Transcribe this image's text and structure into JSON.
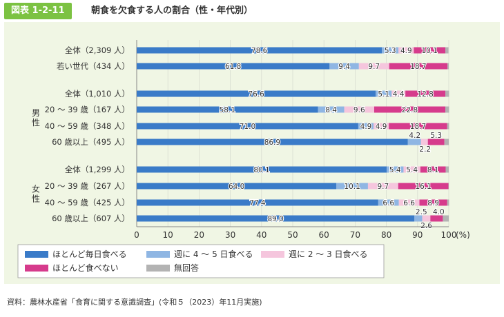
{
  "header": {
    "badge": "図表 1-2-11",
    "title": "朝食を欠食する人の割合（性・年代別）"
  },
  "source": "資料：農林水産省「食育に関する意識調査」(令和５（2023）年11月実施)",
  "colors": {
    "series": [
      "#3a7bc8",
      "#8fb6e3",
      "#f5c6dd",
      "#d63b8c",
      "#b3b3b3"
    ],
    "panel": "#f0f6e4",
    "badge": "#7cc242"
  },
  "chart_data": {
    "type": "bar",
    "orientation": "horizontal",
    "stacked": true,
    "title": "",
    "xlabel": "",
    "ylabel": "",
    "x_unit": "(%)",
    "xlim": [
      0,
      100
    ],
    "x_ticks": [
      0,
      10,
      20,
      30,
      40,
      50,
      60,
      70,
      80,
      90,
      100
    ],
    "grid": true,
    "legend_position": "bottom",
    "categories": [
      "全体（2,309 人）",
      "若い世代（434 人）",
      "全体（1,010 人）",
      "20 ～ 39 歳（167 人）",
      "40 ～ 59 歳（348 人）",
      "60 歳以上（495 人）",
      "全体（1,299 人）",
      "20 ～ 39 歳（267 人）",
      "40 ～ 59 歳（425 人）",
      "60 歳以上（607 人）"
    ],
    "groups": [
      {
        "label": "男性",
        "from": 2,
        "to": 5
      },
      {
        "label": "女性",
        "from": 6,
        "to": 9
      }
    ],
    "series": [
      {
        "name": "ほとんど毎日食べる",
        "values": [
          78.6,
          61.8,
          76.6,
          58.1,
          71.0,
          86.9,
          80.1,
          64.0,
          77.4,
          89.0
        ]
      },
      {
        "name": "週に 4 ～ 5 日食べる",
        "values": [
          5.3,
          9.4,
          5.1,
          8.4,
          4.9,
          4.2,
          5.4,
          10.1,
          6.6,
          2.5
        ]
      },
      {
        "name": "週に 2 ～ 3 日食べる",
        "values": [
          4.9,
          9.7,
          4.4,
          9.6,
          4.9,
          2.2,
          5.4,
          9.7,
          6.6,
          2.6
        ]
      },
      {
        "name": "ほとんど食べない",
        "values": [
          10.1,
          18.7,
          12.8,
          22.8,
          18.7,
          5.3,
          8.1,
          16.1,
          8.9,
          4.0
        ]
      },
      {
        "name": "無回答",
        "values": [
          1.0,
          0.4,
          1.2,
          1.2,
          0.6,
          1.4,
          1.0,
          0.1,
          0.6,
          1.9
        ]
      }
    ],
    "value_labels": [
      [
        "78.6",
        "5.3",
        "4.9",
        "10.1",
        ""
      ],
      [
        "61.8",
        "9.4",
        "9.7",
        "18.7",
        ""
      ],
      [
        "76.6",
        "5.1",
        "4.4",
        "12.8",
        ""
      ],
      [
        "58.1",
        "8.4",
        "9.6",
        "22.8",
        ""
      ],
      [
        "71.0",
        "4.9",
        "4.9",
        "18.7",
        ""
      ],
      [
        "86.9",
        "4.2",
        "2.2",
        "5.3",
        ""
      ],
      [
        "80.1",
        "5.4",
        "5.4",
        "8.1",
        ""
      ],
      [
        "64.0",
        "10.1",
        "9.7",
        "16.1",
        ""
      ],
      [
        "77.4",
        "6.6",
        "6.6",
        "8.9",
        ""
      ],
      [
        "89.0",
        "2.5",
        "2.6",
        "4.0",
        ""
      ]
    ]
  }
}
